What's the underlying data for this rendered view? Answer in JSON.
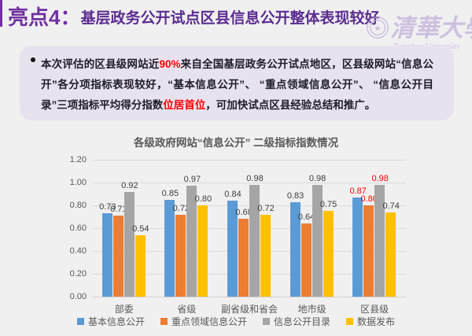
{
  "header": {
    "highlight": "亮点4：",
    "title": "基层政务公开试点区县信息公开整体表现较好",
    "highlight_color": "#7030a0",
    "title_color": "#5b2d90"
  },
  "logo": {
    "cn": "清華大學",
    "en": "Tsinghua University",
    "color": "#bfabd8"
  },
  "callout": {
    "segments": [
      {
        "text": "本次评估的区县级网站近",
        "em": false
      },
      {
        "text": "90%",
        "em": true
      },
      {
        "text": "来自全国基层政务公开试点地区，区县级网站“信息公开”各分项指标表现较好，“基本信息公开”、 “重点领域信息公开”、 “信息公开目录”三项指标平均得分指数",
        "em": false
      },
      {
        "text": "位居首位",
        "em": true
      },
      {
        "text": "，可加快试点区县经验总结和推广。",
        "em": false
      }
    ],
    "emphasis_color": "#ff0000"
  },
  "chart_data": {
    "type": "bar",
    "title": "各级政府网站“信息公开” 二级指标指数情况",
    "categories": [
      "部委",
      "省级",
      "副省级和省会",
      "地市级",
      "区县级"
    ],
    "series": [
      {
        "name": "基本信息公开",
        "color": "#5b9bd5",
        "values": [
          0.73,
          0.85,
          0.84,
          0.83,
          0.87
        ]
      },
      {
        "name": "重点领域信息公开",
        "color": "#ed7d31",
        "values": [
          0.71,
          0.72,
          0.68,
          0.64,
          0.8
        ]
      },
      {
        "name": "信息公开目录",
        "color": "#a5a5a5",
        "values": [
          0.92,
          0.97,
          0.98,
          0.98,
          0.98
        ]
      },
      {
        "name": "数据发布",
        "color": "#ffc000",
        "values": [
          0.54,
          0.8,
          0.72,
          0.75,
          0.74
        ]
      }
    ],
    "ylim": [
      0,
      1.2
    ],
    "ytick_step": 0.2,
    "value_decimals": 2,
    "data_labels": true,
    "label_color": "#404040",
    "highlight": {
      "category": "区县级",
      "series": [
        "基本信息公开",
        "重点领域信息公开",
        "信息公开目录"
      ],
      "color": "#ff0000"
    },
    "grid": true,
    "legend_position": "bottom"
  }
}
